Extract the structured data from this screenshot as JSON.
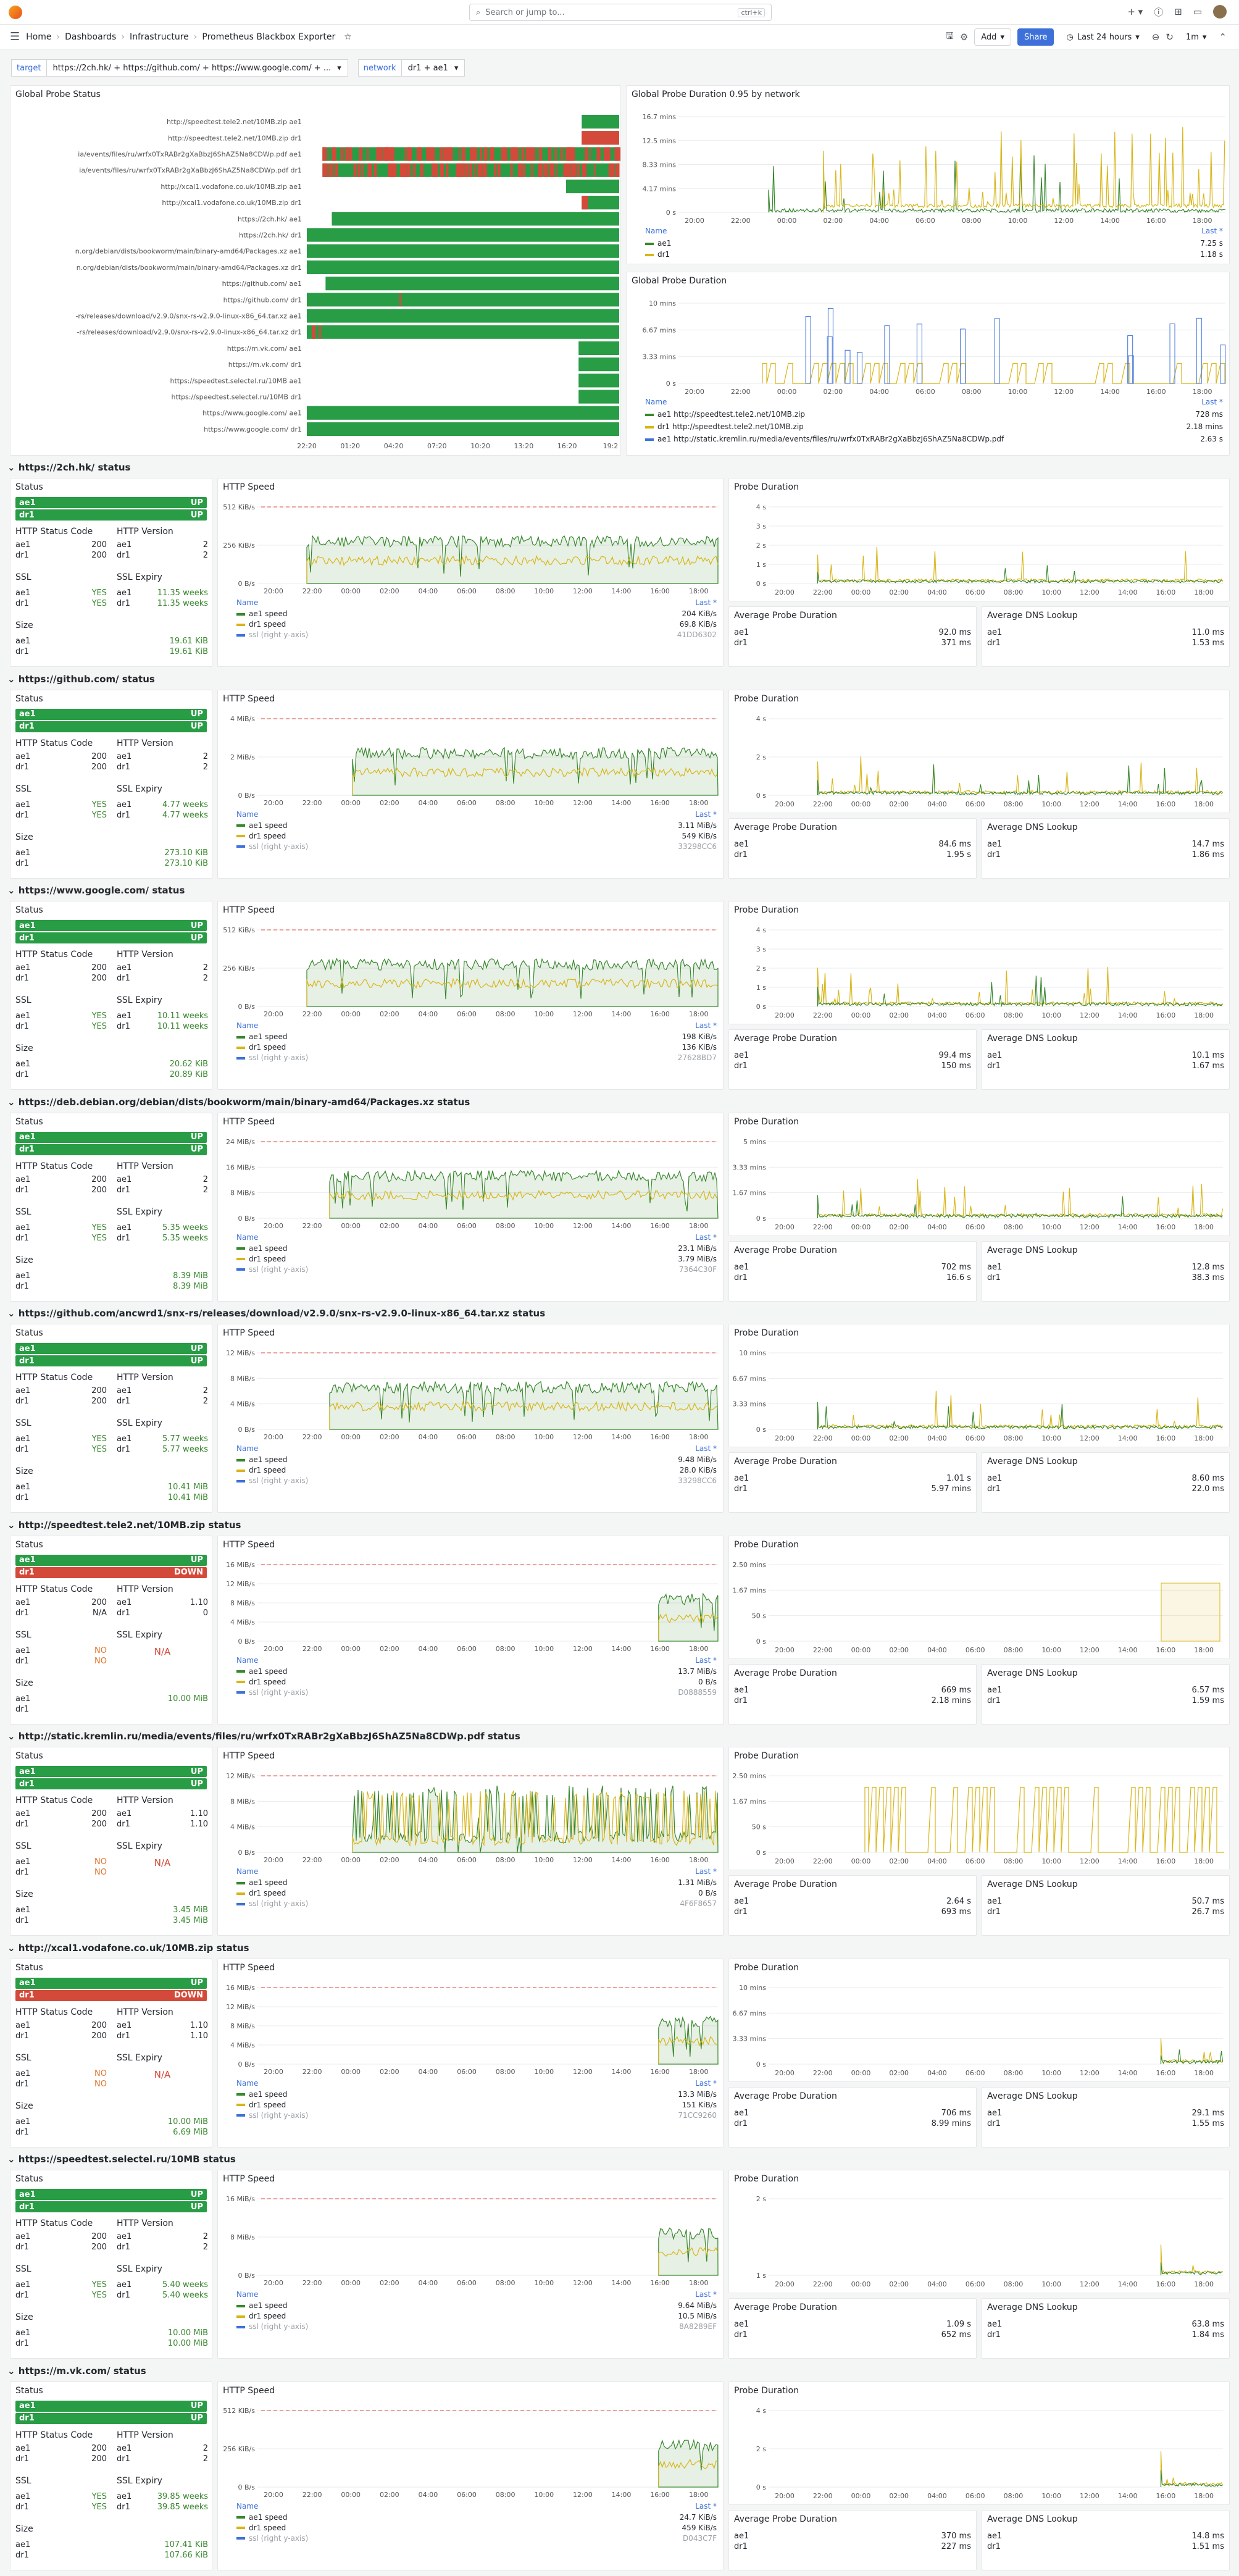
{
  "topbar": {
    "search_placeholder": "Search or jump to...",
    "shortcut": "ctrl+k"
  },
  "breadcrumb": [
    "Home",
    "Dashboards",
    "Infrastructure",
    "Prometheus Blackbox Exporter"
  ],
  "toolbar": {
    "add": "Add",
    "share": "Share",
    "time_range": "Last 24 hours",
    "refresh": "1m"
  },
  "variables": {
    "target_label": "target",
    "target_value": "https://2ch.hk/ + https://github.com/ + https://www.google.com/ + ...",
    "network_label": "network",
    "network_value": "dr1 + ae1"
  },
  "global_status": {
    "title": "Global Probe Status",
    "labels": [
      "http://speedtest.tele2.net/10MB.zip ae1",
      "http://speedtest.tele2.net/10MB.zip dr1",
      "ia/events/files/ru/wrfx0TxRABr2gXaBbzJ6ShAZ5Na8CDWp.pdf ae1",
      "ia/events/files/ru/wrfx0TxRABr2gXaBbzJ6ShAZ5Na8CDWp.pdf dr1",
      "http://xcal1.vodafone.co.uk/10MB.zip ae1",
      "http://xcal1.vodafone.co.uk/10MB.zip dr1",
      "https://2ch.hk/ ae1",
      "https://2ch.hk/ dr1",
      "n.org/debian/dists/bookworm/main/binary-amd64/Packages.xz ae1",
      "n.org/debian/dists/bookworm/main/binary-amd64/Packages.xz dr1",
      "https://github.com/ ae1",
      "https://github.com/ dr1",
      "-rs/releases/download/v2.9.0/snx-rs-v2.9.0-linux-x86_64.tar.xz ae1",
      "-rs/releases/download/v2.9.0/snx-rs-v2.9.0-linux-x86_64.tar.xz dr1",
      "https://m.vk.com/ ae1",
      "https://m.vk.com/ dr1",
      "https://speedtest.selectel.ru/10MB ae1",
      "https://speedtest.selectel.ru/10MB dr1",
      "https://www.google.com/ ae1",
      "https://www.google.com/ dr1"
    ],
    "ticks": [
      "22:20",
      "01:20",
      "04:20",
      "07:20",
      "10:20",
      "13:20",
      "16:20",
      "19:2"
    ]
  },
  "global_dur95": {
    "title": "Global Probe Duration 0.95 by network",
    "yticks": [
      "16.7 mins",
      "12.5 mins",
      "8.33 mins",
      "4.17 mins",
      "0 s"
    ],
    "xticks": [
      "20:00",
      "22:00",
      "00:00",
      "02:00",
      "04:00",
      "06:00",
      "08:00",
      "10:00",
      "12:00",
      "14:00",
      "16:00",
      "18:00"
    ],
    "name_h": "Name",
    "last_h": "Last *",
    "series": [
      {
        "name": "ae1",
        "last": "7.25 s",
        "color": "#37872d"
      },
      {
        "name": "dr1",
        "last": "1.18 s",
        "color": "#d8b517"
      }
    ]
  },
  "global_dur": {
    "title": "Global Probe Duration",
    "yticks": [
      "10 mins",
      "6.67 mins",
      "3.33 mins",
      "0 s"
    ],
    "xticks": [
      "20:00",
      "22:00",
      "00:00",
      "02:00",
      "04:00",
      "06:00",
      "08:00",
      "10:00",
      "12:00",
      "14:00",
      "16:00",
      "18:00"
    ],
    "name_h": "Name",
    "last_h": "Last *",
    "series": [
      {
        "name": "ae1 http://speedtest.tele2.net/10MB.zip",
        "last": "728 ms",
        "color": "#37872d"
      },
      {
        "name": "dr1 http://speedtest.tele2.net/10MB.zip",
        "last": "2.18 mins",
        "color": "#d8b517"
      },
      {
        "name": "ae1 http://static.kremlin.ru/media/events/files/ru/wrfx0TxRABr2gXaBbzJ6ShAZ5Na8CDWp.pdf",
        "last": "2.63 s",
        "color": "#3d71d9"
      }
    ]
  },
  "labels": {
    "status": "Status",
    "http_speed": "HTTP Speed",
    "probe_duration": "Probe Duration",
    "http_status_code": "HTTP Status Code",
    "http_version": "HTTP Version",
    "ssl": "SSL",
    "ssl_expiry": "SSL Expiry",
    "size": "Size",
    "avg_probe": "Average Probe Duration",
    "avg_dns": "Average DNS Lookup",
    "name": "Name",
    "last": "Last *",
    "ae1_speed": "ae1 speed",
    "dr1_speed": "dr1 speed",
    "ssl_right": "ssl (right y-axis)"
  },
  "time_ticks": [
    "20:00",
    "22:00",
    "00:00",
    "02:00",
    "04:00",
    "06:00",
    "08:00",
    "10:00",
    "12:00",
    "14:00",
    "16:00",
    "18:00"
  ],
  "rows": [
    {
      "title": "https://2ch.hk/ status",
      "ae1": "UP",
      "dr1": "UP",
      "dr1_down": false,
      "code": [
        "200",
        "200"
      ],
      "ver": [
        "2",
        "2"
      ],
      "ssl": [
        "YES",
        "YES"
      ],
      "exp": [
        "11.35 weeks",
        "11.35 weeks"
      ],
      "size": [
        "19.61 KiB",
        "19.61 KiB"
      ],
      "sp_y": [
        "512 KiB/s",
        "256 KiB/s",
        "0 B/s"
      ],
      "sp_last": [
        "204 KiB/s",
        "69.8 KiB/s",
        "41DD6302"
      ],
      "pd_y": [
        "4 s",
        "3 s",
        "2 s",
        "1 s",
        "0 s"
      ],
      "avgp": [
        "92.0 ms",
        "371 ms"
      ],
      "avgd": [
        "11.0 ms",
        "1.53 ms"
      ],
      "prof": "a"
    },
    {
      "title": "https://github.com/ status",
      "ae1": "UP",
      "dr1": "UP",
      "dr1_down": false,
      "code": [
        "200",
        "200"
      ],
      "ver": [
        "2",
        "2"
      ],
      "ssl": [
        "YES",
        "YES"
      ],
      "exp": [
        "4.77 weeks",
        "4.77 weeks"
      ],
      "size": [
        "273.10 KiB",
        "273.10 KiB"
      ],
      "sp_y": [
        "4 MiB/s",
        "2 MiB/s",
        "0 B/s"
      ],
      "sp_last": [
        "3.11 MiB/s",
        "549 KiB/s",
        "33298CC6"
      ],
      "pd_y": [
        "4 s",
        "2 s",
        "0 s"
      ],
      "avgp": [
        "84.6 ms",
        "1.95 s"
      ],
      "avgd": [
        "14.7 ms",
        "1.86 ms"
      ],
      "prof": "b"
    },
    {
      "title": "https://www.google.com/ status",
      "ae1": "UP",
      "dr1": "UP",
      "dr1_down": false,
      "code": [
        "200",
        "200"
      ],
      "ver": [
        "2",
        "2"
      ],
      "ssl": [
        "YES",
        "YES"
      ],
      "exp": [
        "10.11 weeks",
        "10.11 weeks"
      ],
      "size": [
        "20.62 KiB",
        "20.89 KiB"
      ],
      "sp_y": [
        "512 KiB/s",
        "256 KiB/s",
        "0 B/s"
      ],
      "sp_last": [
        "198 KiB/s",
        "136 KiB/s",
        "27628BD7"
      ],
      "pd_y": [
        "4 s",
        "3 s",
        "2 s",
        "1 s",
        "0 s"
      ],
      "avgp": [
        "99.4 ms",
        "150 ms"
      ],
      "avgd": [
        "10.1 ms",
        "1.67 ms"
      ],
      "prof": "a"
    },
    {
      "title": "https://deb.debian.org/debian/dists/bookworm/main/binary-amd64/Packages.xz status",
      "ae1": "UP",
      "dr1": "UP",
      "dr1_down": false,
      "code": [
        "200",
        "200"
      ],
      "ver": [
        "2",
        "2"
      ],
      "ssl": [
        "YES",
        "YES"
      ],
      "exp": [
        "5.35 weeks",
        "5.35 weeks"
      ],
      "size": [
        "8.39 MiB",
        "8.39 MiB"
      ],
      "sp_y": [
        "24 MiB/s",
        "16 MiB/s",
        "8 MiB/s",
        "0 B/s"
      ],
      "sp_last": [
        "23.1 MiB/s",
        "3.79 MiB/s",
        "7364C30F"
      ],
      "pd_y": [
        "5 mins",
        "3.33 mins",
        "1.67 mins",
        "0 s"
      ],
      "avgp": [
        "702 ms",
        "16.6 s"
      ],
      "avgd": [
        "12.8 ms",
        "38.3 ms"
      ],
      "prof": "c"
    },
    {
      "title": "https://github.com/ancwrd1/snx-rs/releases/download/v2.9.0/snx-rs-v2.9.0-linux-x86_64.tar.xz status",
      "ae1": "UP",
      "dr1": "UP",
      "dr1_down": false,
      "code": [
        "200",
        "200"
      ],
      "ver": [
        "2",
        "2"
      ],
      "ssl": [
        "YES",
        "YES"
      ],
      "exp": [
        "5.77 weeks",
        "5.77 weeks"
      ],
      "size": [
        "10.41 MiB",
        "10.41 MiB"
      ],
      "sp_y": [
        "12 MiB/s",
        "8 MiB/s",
        "4 MiB/s",
        "0 B/s"
      ],
      "sp_last": [
        "9.48 MiB/s",
        "28.0 KiB/s",
        "33298CC6"
      ],
      "pd_y": [
        "10 mins",
        "6.67 mins",
        "3.33 mins",
        "0 s"
      ],
      "avgp": [
        "1.01 s",
        "5.97 mins"
      ],
      "avgd": [
        "8.60 ms",
        "22.0 ms"
      ],
      "prof": "c"
    },
    {
      "title": "http://speedtest.tele2.net/10MB.zip status",
      "ae1": "UP",
      "dr1": "DOWN",
      "dr1_down": true,
      "code": [
        "200",
        "N/A"
      ],
      "ver": [
        "1.10",
        "0"
      ],
      "ssl": [
        "NO",
        "NO"
      ],
      "exp": [
        "N/A",
        ""
      ],
      "size": [
        "10.00 MiB",
        ""
      ],
      "sp_y": [
        "16 MiB/s",
        "12 MiB/s",
        "8 MiB/s",
        "4 MiB/s",
        "0 B/s"
      ],
      "sp_last": [
        "13.7 MiB/s",
        "0 B/s",
        "D0888559"
      ],
      "pd_y": [
        "2.50 mins",
        "1.67 mins",
        "50 s",
        "0 s"
      ],
      "avgp": [
        "669 ms",
        "2.18 mins"
      ],
      "avgd": [
        "6.57 ms",
        "1.59 ms"
      ],
      "prof": "d"
    },
    {
      "title": "http://static.kremlin.ru/media/events/files/ru/wrfx0TxRABr2gXaBbzJ6ShAZ5Na8CDWp.pdf status",
      "ae1": "UP",
      "dr1": "UP",
      "dr1_down": false,
      "code": [
        "200",
        "200"
      ],
      "ver": [
        "1.10",
        "1.10"
      ],
      "ssl": [
        "NO",
        "NO"
      ],
      "exp": [
        "N/A",
        ""
      ],
      "size": [
        "3.45 MiB",
        "3.45 MiB"
      ],
      "sp_y": [
        "12 MiB/s",
        "8 MiB/s",
        "4 MiB/s",
        "0 B/s"
      ],
      "sp_last": [
        "1.31 MiB/s",
        "0 B/s",
        "4F6F8657"
      ],
      "pd_y": [
        "2.50 mins",
        "1.67 mins",
        "50 s",
        "0 s"
      ],
      "avgp": [
        "2.64 s",
        "693 ms"
      ],
      "avgd": [
        "50.7 ms",
        "26.7 ms"
      ],
      "prof": "e"
    },
    {
      "title": "http://xcal1.vodafone.co.uk/10MB.zip status",
      "ae1": "UP",
      "dr1": "DOWN",
      "dr1_down": true,
      "code": [
        "200",
        "200"
      ],
      "ver": [
        "1.10",
        "1.10"
      ],
      "ssl": [
        "NO",
        "NO"
      ],
      "exp": [
        "N/A",
        ""
      ],
      "size": [
        "10.00 MiB",
        "6.69 MiB"
      ],
      "sp_y": [
        "16 MiB/s",
        "12 MiB/s",
        "8 MiB/s",
        "4 MiB/s",
        "0 B/s"
      ],
      "sp_last": [
        "13.3 MiB/s",
        "151 KiB/s",
        "71CC9260"
      ],
      "pd_y": [
        "10 mins",
        "6.67 mins",
        "3.33 mins",
        "0 s"
      ],
      "avgp": [
        "706 ms",
        "8.99 mins"
      ],
      "avgd": [
        "29.1 ms",
        "1.55 ms"
      ],
      "prof": "d"
    },
    {
      "title": "https://speedtest.selectel.ru/10MB status",
      "ae1": "UP",
      "dr1": "UP",
      "dr1_down": false,
      "code": [
        "200",
        "200"
      ],
      "ver": [
        "2",
        "2"
      ],
      "ssl": [
        "YES",
        "YES"
      ],
      "exp": [
        "5.40 weeks",
        "5.40 weeks"
      ],
      "size": [
        "10.00 MiB",
        "10.00 MiB"
      ],
      "sp_y": [
        "16 MiB/s",
        "8 MiB/s",
        "0 B/s"
      ],
      "sp_last": [
        "9.64 MiB/s",
        "10.5 MiB/s",
        "8A8289EF"
      ],
      "pd_y": [
        "2 s",
        "1 s"
      ],
      "avgp": [
        "1.09 s",
        "652 ms"
      ],
      "avgd": [
        "63.8 ms",
        "1.84 ms"
      ],
      "prof": "d"
    },
    {
      "title": "https://m.vk.com/ status",
      "ae1": "UP",
      "dr1": "UP",
      "dr1_down": false,
      "code": [
        "200",
        "200"
      ],
      "ver": [
        "2",
        "2"
      ],
      "ssl": [
        "YES",
        "YES"
      ],
      "exp": [
        "39.85 weeks",
        "39.85 weeks"
      ],
      "size": [
        "107.41 KiB",
        "107.66 KiB"
      ],
      "sp_y": [
        "512 KiB/s",
        "256 KiB/s",
        "0 B/s"
      ],
      "sp_last": [
        "24.7 KiB/s",
        "459 KiB/s",
        "D043C7F"
      ],
      "pd_y": [
        "4 s",
        "2 s",
        "0 s"
      ],
      "avgp": [
        "370 ms",
        "227 ms"
      ],
      "avgd": [
        "14.8 ms",
        "1.51 ms"
      ],
      "prof": "d"
    }
  ],
  "colors": {
    "green": "#37872d",
    "yellow": "#d8b517",
    "red": "#d44a3a",
    "blue": "#3d71d9",
    "up_green": "#299c46"
  }
}
